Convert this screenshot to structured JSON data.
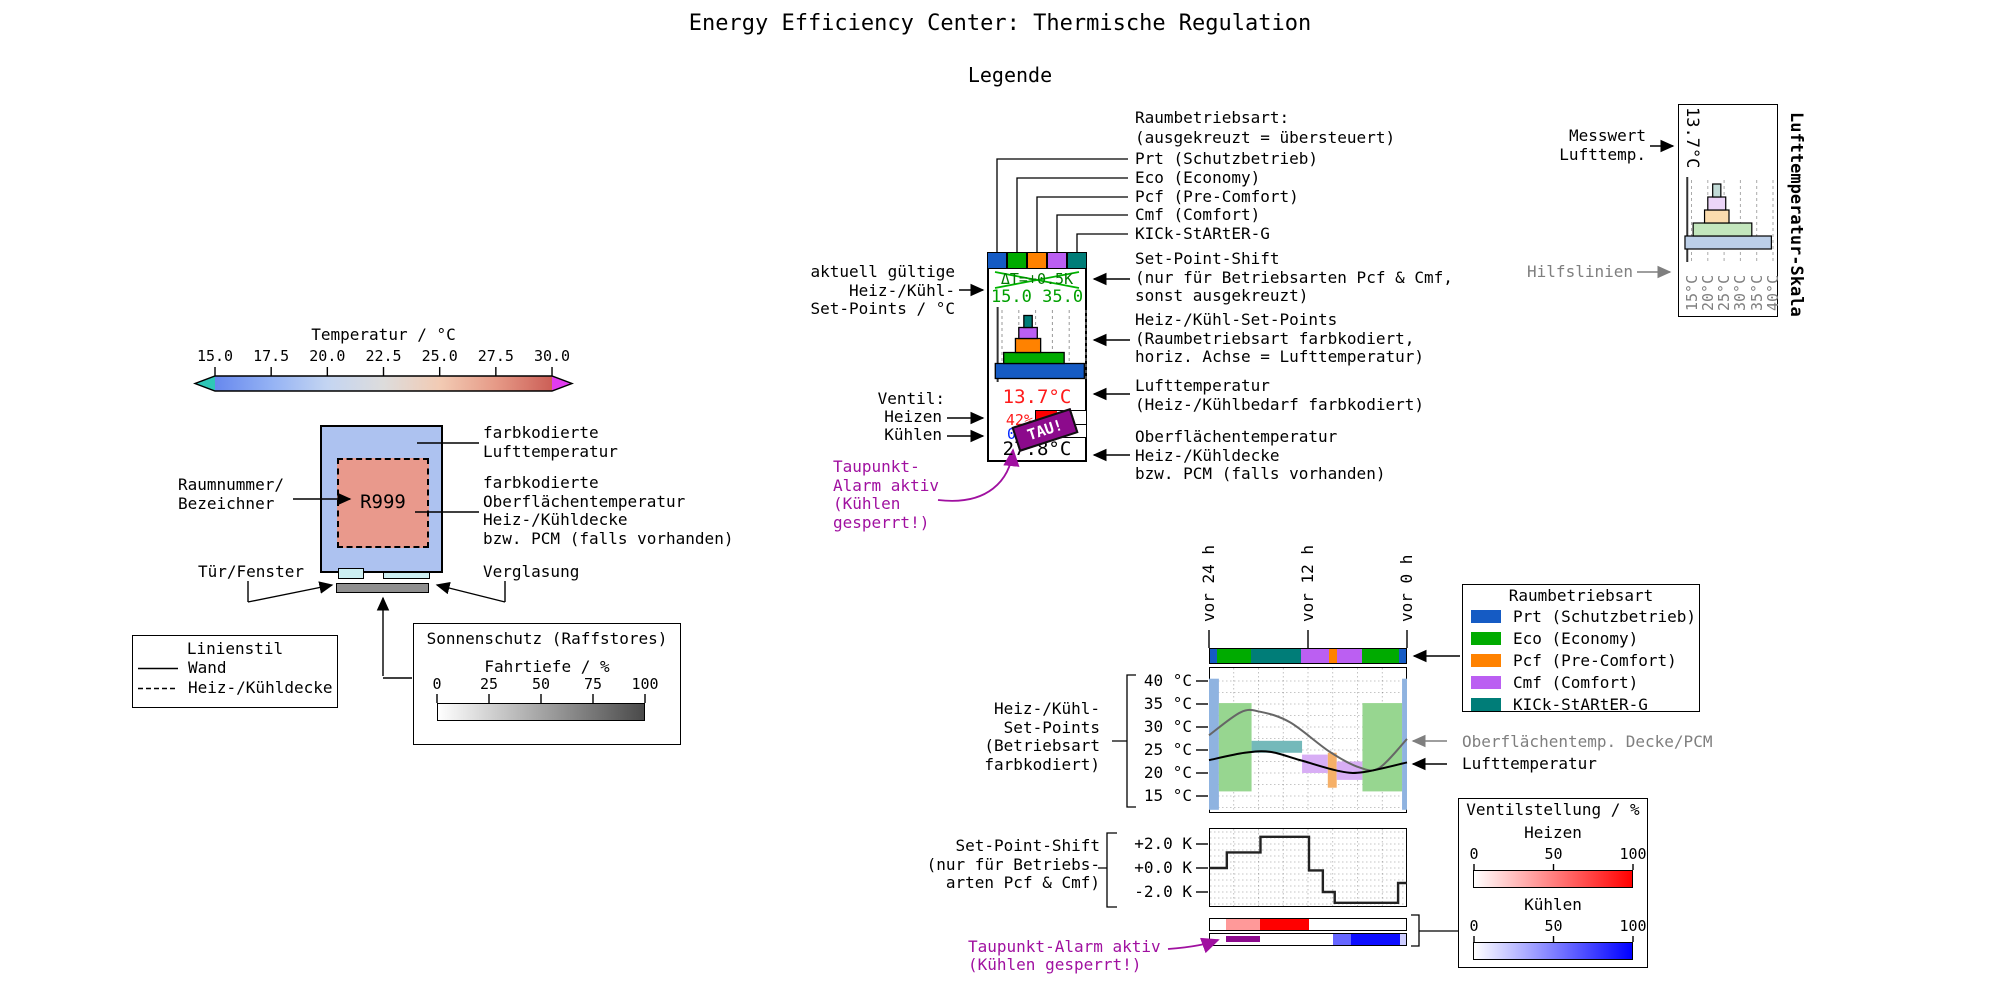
{
  "page": {
    "title": "Energy Efficiency Center: Thermische Regulation",
    "subtitle": "Legende"
  },
  "colors": {
    "modes": {
      "Prt": "#155bc4",
      "Eco": "#00ab00",
      "Pcf": "#ff8200",
      "Cmf": "#bb5ff2",
      "KICk": "#007d78"
    },
    "modes_band": {
      "Prt": "#8fb3e0",
      "Eco": "#97d690",
      "Pcf": "#f6b068",
      "Cmf": "#d8aef5",
      "KICk": "#74b9ba"
    },
    "modes_pastel": {
      "Prt": "#bccfe8",
      "Eco": "#c3e6bd",
      "Pcf": "#fbdcae",
      "Cmf": "#ecd5f8",
      "KICk": "#c2dbd7"
    },
    "heat": "#ff0000",
    "heat_light": "#ff9999",
    "cool": "#0f0fff",
    "alarm": "#8c0a8c",
    "alarm_text": "#a010a0",
    "setpoint_green": "#00a000",
    "delta_green": "#007a00",
    "air_red": "#ff1a1a",
    "cool_blue": "#0026ff",
    "gray_label": "#7f7f7f",
    "room_air_fill": "#adc2f0",
    "room_surface_fill": "#e9998c",
    "glazing_fill": "#cdeff2",
    "shade_fill": "#8f8f8f"
  },
  "temp_colorbar": {
    "title": "Temperatur / °C",
    "ticks": [
      "15.0",
      "17.5",
      "20.0",
      "22.5",
      "25.0",
      "27.5",
      "30.0"
    ],
    "gradient": [
      "#6788ee",
      "#94b2f4",
      "#c4d5f2",
      "#dddcdc",
      "#f2cbb4",
      "#e69a87",
      "#cc5f57"
    ],
    "under_color": "#2fc7b7",
    "over_color": "#e23cf0"
  },
  "room": {
    "number": "R999",
    "label_number": "Raumnummer/\nBezeichner",
    "label_air": "farbkodierte\nLufttemperatur",
    "label_surface": "farbkodierte\nOberflächentemperatur\nHeiz-/Kühldecke\nbzw. PCM (falls vorhanden)",
    "label_door": "Tür/Fenster",
    "label_glazing": "Verglasung"
  },
  "linestyle_legend": {
    "title": "Linienstil",
    "items": [
      {
        "style": "solid",
        "label": "Wand"
      },
      {
        "style": "dashed",
        "label": "Heiz-/Kühldecke"
      }
    ]
  },
  "shade_legend": {
    "title": "Sonnenschutz (Raffstores)",
    "axis_label": "Fahrtiefe / %",
    "ticks": [
      "0",
      "25",
      "50",
      "75",
      "100"
    ]
  },
  "modes": [
    {
      "code": "Prt",
      "label": "Prt (Schutzbetrieb)"
    },
    {
      "code": "Eco",
      "label": "Eco (Economy)"
    },
    {
      "code": "Pcf",
      "label": "Pcf (Pre-Comfort)"
    },
    {
      "code": "Cmf",
      "label": "Cmf (Comfort)"
    },
    {
      "code": "KICk",
      "label": "KICk-StARtER-G"
    }
  ],
  "widget": {
    "header": "Raumbetriebsart:\n(ausgekreuzt = übersteuert)",
    "delta_t": "ΔT=+0.5K",
    "setpoints": "15.0 35.0",
    "air_temp": "13.7°C",
    "heat_pct": "42%",
    "cool_pct": "0",
    "tau_badge": "TAU!",
    "surface_temp": "27.8°C",
    "ann_left_setpoints": "aktuell gültige\nHeiz-/Kühl-\nSet-Points / °C",
    "ann_valve": "Ventil:",
    "ann_heat": "Heizen",
    "ann_cool": "Kühlen",
    "ann_tau": "Taupunkt-\nAlarm aktiv\n(Kühlen\ngesperrt!)",
    "ann_shift": "Set-Point-Shift\n(nur für Betriebsarten Pcf & Cmf,\nsonst ausgekreuzt)",
    "ann_setpoints": "Heiz-/Kühl-Set-Points\n(Raumbetriebsart farbkodiert,\nhoriz. Achse = Lufttemperatur)",
    "ann_air": "Lufttemperatur\n(Heiz-/Kühlbedarf farbkodiert)",
    "ann_surface": "Oberflächentemperatur\nHeiz-/Kühldecke\nbzw. PCM (falls vorhanden)"
  },
  "temp_scale": {
    "measured": "13.7°C",
    "ticks": [
      "15°C",
      "20°C",
      "25°C",
      "30°C",
      "35°C",
      "40°C"
    ],
    "label_measured": "Messwert\nLufttemp.",
    "label_grid": "Hilfslinien",
    "axis_title": "Lufttemperatur-Skala"
  },
  "timeseries": {
    "x_labels": [
      "vor 24 h",
      "vor 12 h",
      "vor 0 h"
    ],
    "temp_ticks": [
      "40 °C",
      "35 °C",
      "30 °C",
      "25 °C",
      "20 °C",
      "15 °C"
    ],
    "shift_ticks": [
      "+2.0 K",
      "+0.0 K",
      "-2.0 K"
    ],
    "label_setpoints": "Heiz-/Kühl-\nSet-Points\n(Betriebsart\nfarbkodiert)",
    "label_shift": "Set-Point-Shift\n(nur für Betriebs-\narten Pcf & Cmf)",
    "label_alarm": "Taupunkt-Alarm aktiv\n(Kühlen gesperrt!)",
    "label_surface_curve": "Oberflächentemp. Decke/PCM",
    "label_air_curve": "Lufttemperatur",
    "mode_legend_title": "Raumbetriebsart"
  },
  "valve_legend": {
    "title": "Ventilstellung / %",
    "heat_label": "Heizen",
    "cool_label": "Kühlen",
    "ticks": [
      "0",
      "50",
      "100"
    ]
  },
  "chart_data": [
    {
      "name": "setpoint_pyramid",
      "type": "bar",
      "xlabel": "Lufttemperatur / °C",
      "x_range": [
        15,
        40
      ],
      "bars": [
        {
          "mode": "Prt",
          "span_c": [
            13.0,
            39.5
          ]
        },
        {
          "mode": "Eco",
          "span_c": [
            15.5,
            33.5
          ]
        },
        {
          "mode": "Pcf",
          "span_c": [
            19.0,
            26.5
          ]
        },
        {
          "mode": "Cmf",
          "span_c": [
            20.0,
            25.5
          ]
        },
        {
          "mode": "KICk",
          "span_c": [
            21.5,
            24.0
          ]
        }
      ],
      "measured_air_c": 13.7,
      "grid_ticks_c": [
        15,
        20,
        25,
        30,
        35,
        40
      ]
    },
    {
      "name": "history_24h",
      "type": "area",
      "x_axis": {
        "labels": [
          "vor 24 h",
          "vor 12 h",
          "vor 0 h"
        ],
        "fractions": [
          0,
          0.5,
          1
        ]
      },
      "temp_axis_c": [
        15,
        40
      ],
      "shift_axis_k": [
        -3,
        3
      ],
      "mode_timeline": [
        {
          "mode": "Prt",
          "from": 0.0,
          "to": 0.043
        },
        {
          "mode": "Eco",
          "from": 0.043,
          "to": 0.217
        },
        {
          "mode": "KICk",
          "from": 0.217,
          "to": 0.47
        },
        {
          "mode": "Cmf",
          "from": 0.47,
          "to": 0.61
        },
        {
          "mode": "Pcf",
          "from": 0.61,
          "to": 0.652
        },
        {
          "mode": "Cmf",
          "from": 0.652,
          "to": 0.774
        },
        {
          "mode": "Eco",
          "from": 0.774,
          "to": 0.965
        },
        {
          "mode": "Prt",
          "from": 0.965,
          "to": 1.0
        }
      ],
      "setpoint_bands": [
        {
          "mode": "Prt",
          "from": 0.0,
          "to": 0.05,
          "low_c": 12.0,
          "high_c": 40.5
        },
        {
          "mode": "Eco",
          "from": 0.05,
          "to": 0.215,
          "low_c": 16.0,
          "high_c": 35.2
        },
        {
          "mode": "KICk",
          "from": 0.215,
          "to": 0.47,
          "low_c": 24.4,
          "high_c": 27.0
        },
        {
          "mode": "Cmf",
          "from": 0.47,
          "to": 0.6,
          "low_c": 20.0,
          "high_c": 24.0
        },
        {
          "mode": "Pcf",
          "from": 0.6,
          "to": 0.645,
          "low_c": 16.8,
          "high_c": 24.4
        },
        {
          "mode": "Cmf",
          "from": 0.645,
          "to": 0.775,
          "low_c": 18.5,
          "high_c": 22.5
        },
        {
          "mode": "Eco",
          "from": 0.775,
          "to": 0.975,
          "low_c": 16.0,
          "high_c": 35.2
        },
        {
          "mode": "Prt",
          "from": 0.975,
          "to": 1.0,
          "low_c": 12.0,
          "high_c": 40.5
        }
      ],
      "surface_temp_curve": [
        [
          0,
          28.2
        ],
        [
          0.16,
          33.2
        ],
        [
          0.26,
          33.3
        ],
        [
          0.41,
          31.0
        ],
        [
          0.61,
          24.6
        ],
        [
          0.76,
          21.2
        ],
        [
          0.86,
          21.1
        ],
        [
          1.0,
          27.4
        ]
      ],
      "air_temp_curve": [
        [
          0,
          22.8
        ],
        [
          0.18,
          24.4
        ],
        [
          0.31,
          24.6
        ],
        [
          0.46,
          22.8
        ],
        [
          0.66,
          20.4
        ],
        [
          0.78,
          20.2
        ],
        [
          1.0,
          22.3
        ]
      ],
      "shift_steps_k": [
        [
          0.0,
          0.0
        ],
        [
          0.09,
          1.3
        ],
        [
          0.26,
          2.6
        ],
        [
          0.505,
          -0.2
        ],
        [
          0.575,
          -2.0
        ],
        [
          0.635,
          -2.9
        ],
        [
          0.955,
          -1.25
        ]
      ],
      "heat_valve": [
        {
          "from": 0.09,
          "to": 0.26,
          "pct": 40
        },
        {
          "from": 0.26,
          "to": 0.51,
          "pct": 100
        }
      ],
      "cool_valve": [
        {
          "from": 0.63,
          "to": 0.72,
          "pct": 60
        },
        {
          "from": 0.72,
          "to": 0.97,
          "pct": 95
        },
        {
          "from": 0.97,
          "to": 1.0,
          "pct": 20
        }
      ],
      "dewpoint_alarm": [
        {
          "from": 0.09,
          "to": 0.26
        }
      ]
    }
  ]
}
